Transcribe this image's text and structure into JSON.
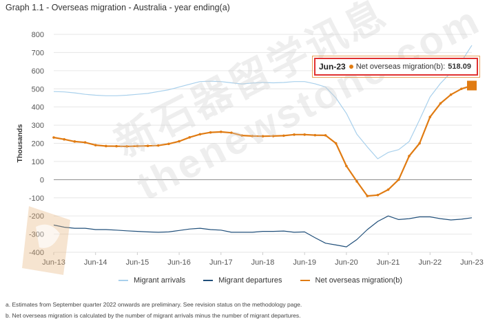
{
  "title": "Graph 1.1 - Overseas migration - Australia - year ending(a)",
  "chart_data": {
    "type": "line",
    "ylabel": "Thousands",
    "ylim": [
      -400,
      800
    ],
    "yticks": [
      800,
      700,
      600,
      500,
      400,
      300,
      200,
      100,
      0,
      -100,
      -200,
      -300,
      -400
    ],
    "x_tick_labels": [
      "Jun-13",
      "Jun-14",
      "Jun-15",
      "Jun-16",
      "Jun-17",
      "Jun-18",
      "Jun-19",
      "Jun-20",
      "Jun-21",
      "Jun-22",
      "Jun-23"
    ],
    "x": [
      "Jun-13",
      "Sep-13",
      "Dec-13",
      "Mar-14",
      "Jun-14",
      "Sep-14",
      "Dec-14",
      "Mar-15",
      "Jun-15",
      "Sep-15",
      "Dec-15",
      "Mar-16",
      "Jun-16",
      "Sep-16",
      "Dec-16",
      "Mar-17",
      "Jun-17",
      "Sep-17",
      "Dec-17",
      "Mar-18",
      "Jun-18",
      "Sep-18",
      "Dec-18",
      "Mar-19",
      "Jun-19",
      "Sep-19",
      "Dec-19",
      "Mar-20",
      "Jun-20",
      "Sep-20",
      "Dec-20",
      "Mar-21",
      "Jun-21",
      "Sep-21",
      "Dec-21",
      "Mar-22",
      "Jun-22",
      "Sep-22",
      "Dec-22",
      "Mar-23",
      "Jun-23"
    ],
    "grid": true,
    "legend_position": "bottom",
    "series": [
      {
        "name": "Migrant arrivals",
        "color": "#a8d0ec",
        "values": [
          485,
          483,
          478,
          470,
          465,
          462,
          462,
          465,
          470,
          475,
          485,
          495,
          510,
          525,
          540,
          542,
          540,
          533,
          527,
          532,
          535,
          533,
          535,
          540,
          540,
          528,
          510,
          450,
          365,
          250,
          180,
          115,
          150,
          165,
          210,
          330,
          455,
          530,
          590,
          650,
          740
        ]
      },
      {
        "name": "Migrant departures",
        "color": "#1f4e79",
        "values": [
          -250,
          -262,
          -268,
          -268,
          -275,
          -275,
          -278,
          -282,
          -285,
          -288,
          -290,
          -288,
          -280,
          -272,
          -268,
          -275,
          -278,
          -290,
          -290,
          -290,
          -285,
          -285,
          -283,
          -290,
          -288,
          -320,
          -350,
          -360,
          -370,
          -330,
          -275,
          -230,
          -200,
          -220,
          -215,
          -205,
          -205,
          -215,
          -222,
          -218,
          -210
        ]
      },
      {
        "name": "Net overseas migration(b)",
        "color": "#e07b12",
        "values": [
          232,
          222,
          210,
          205,
          190,
          185,
          184,
          183,
          185,
          186,
          188,
          197,
          211,
          233,
          250,
          260,
          263,
          258,
          243,
          240,
          239,
          240,
          242,
          248,
          248,
          245,
          244,
          200,
          75,
          -10,
          -90,
          -85,
          -55,
          0,
          130,
          200,
          345,
          420,
          468,
          500,
          518.09
        ]
      }
    ],
    "tooltip": {
      "date": "Jun-23",
      "series": "Net overseas migration(b)",
      "value": "518.09",
      "color": "#e07b12"
    }
  },
  "footnotes": [
    "a. Estimates from September quarter 2022 onwards are preliminary. See revision status on the methodology page.",
    "b. Net overseas migration is calculated by the number of migrant arrivals minus the number of migrant departures."
  ],
  "tooltip_text": {
    "date": "Jun-23",
    "label": "Net overseas migration(b):",
    "value": "518.09"
  },
  "watermark": {
    "text_cn": "新石器留学讯息",
    "text_en": "thenewstone.com"
  }
}
